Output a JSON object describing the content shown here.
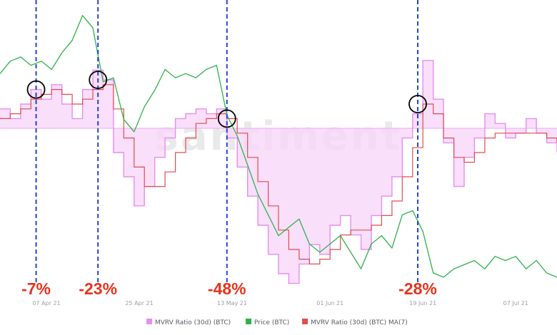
{
  "watermark": "santiment",
  "chart_data": {
    "type": "line",
    "x_start": "2021-03-29",
    "x_end": "2021-07-15",
    "x_ticks": [
      {
        "date": "2021-04-07",
        "label": "07 Apr 21"
      },
      {
        "date": "2021-04-25",
        "label": "25 Apr 21"
      },
      {
        "date": "2021-05-13",
        "label": "13 May 21"
      },
      {
        "date": "2021-06-01",
        "label": "01 Jun 21"
      },
      {
        "date": "2021-06-19",
        "label": "19 Jun 21"
      },
      {
        "date": "2021-07-07",
        "label": "07 Jul 21"
      }
    ],
    "mvrv_baseline": 0,
    "series": [
      {
        "name": "Price (BTC)",
        "color": "#2fb24a",
        "y_range": [
          30000,
          65000
        ],
        "x": [
          "2021-03-29",
          "2021-03-31",
          "2021-04-02",
          "2021-04-04",
          "2021-04-06",
          "2021-04-08",
          "2021-04-10",
          "2021-04-12",
          "2021-04-14",
          "2021-04-16",
          "2021-04-18",
          "2021-04-20",
          "2021-04-22",
          "2021-04-24",
          "2021-04-26",
          "2021-04-28",
          "2021-04-30",
          "2021-05-02",
          "2021-05-04",
          "2021-05-06",
          "2021-05-08",
          "2021-05-10",
          "2021-05-12",
          "2021-05-14",
          "2021-05-16",
          "2021-05-18",
          "2021-05-20",
          "2021-05-22",
          "2021-05-24",
          "2021-05-26",
          "2021-05-28",
          "2021-05-30",
          "2021-06-01",
          "2021-06-03",
          "2021-06-05",
          "2021-06-07",
          "2021-06-09",
          "2021-06-11",
          "2021-06-13",
          "2021-06-15",
          "2021-06-17",
          "2021-06-19",
          "2021-06-21",
          "2021-06-23",
          "2021-06-25",
          "2021-06-27",
          "2021-06-29",
          "2021-07-01",
          "2021-07-03",
          "2021-07-05",
          "2021-07-07",
          "2021-07-09",
          "2021-07-11",
          "2021-07-13",
          "2021-07-15"
        ],
        "values": [
          57000,
          58500,
          59000,
          58000,
          58500,
          57500,
          59500,
          61000,
          64000,
          62500,
          56000,
          56500,
          51500,
          50000,
          53000,
          55000,
          57500,
          56500,
          57000,
          56500,
          57500,
          58000,
          52000,
          49500,
          46000,
          42500,
          40000,
          37500,
          38500,
          39500,
          36500,
          35500,
          36500,
          37500,
          35500,
          33500,
          36500,
          37500,
          36000,
          40000,
          40500,
          38000,
          33000,
          32500,
          33500,
          34000,
          34500,
          33500,
          35000,
          34500,
          35000,
          33500,
          34500,
          33000,
          32500
        ]
      },
      {
        "name": "MVRV Ratio (30d) (BTC)",
        "color": "#e68ef0",
        "y_range": [
          -35,
          25
        ],
        "x": [
          "2021-03-29",
          "2021-03-31",
          "2021-04-02",
          "2021-04-04",
          "2021-04-06",
          "2021-04-08",
          "2021-04-10",
          "2021-04-12",
          "2021-04-14",
          "2021-04-16",
          "2021-04-18",
          "2021-04-20",
          "2021-04-22",
          "2021-04-24",
          "2021-04-26",
          "2021-04-28",
          "2021-04-30",
          "2021-05-02",
          "2021-05-04",
          "2021-05-06",
          "2021-05-08",
          "2021-05-10",
          "2021-05-12",
          "2021-05-14",
          "2021-05-16",
          "2021-05-18",
          "2021-05-20",
          "2021-05-22",
          "2021-05-24",
          "2021-05-26",
          "2021-05-28",
          "2021-05-30",
          "2021-06-01",
          "2021-06-03",
          "2021-06-05",
          "2021-06-07",
          "2021-06-09",
          "2021-06-11",
          "2021-06-13",
          "2021-06-15",
          "2021-06-17",
          "2021-06-19",
          "2021-06-21",
          "2021-06-23",
          "2021-06-25",
          "2021-06-27",
          "2021-06-29",
          "2021-07-01",
          "2021-07-03",
          "2021-07-05",
          "2021-07-07",
          "2021-07-09",
          "2021-07-11",
          "2021-07-13",
          "2021-07-15"
        ],
        "values": [
          4,
          2,
          5,
          8,
          6,
          9,
          5,
          2,
          8,
          12,
          10,
          -5,
          -10,
          -16,
          -12,
          -6,
          -2,
          2,
          3,
          4,
          3,
          4,
          -2,
          -8,
          -14,
          -20,
          -26,
          -30,
          -32,
          -28,
          -24,
          -26,
          -20,
          -18,
          -22,
          -25,
          -18,
          -14,
          -10,
          -2,
          3,
          14,
          6,
          -3,
          -12,
          -6,
          -2,
          3,
          1,
          -2,
          -1,
          2,
          -1,
          -3,
          -5
        ]
      },
      {
        "name": "MVRV Ratio (30d) (BTC) MA(7)",
        "color": "#e24d4d",
        "y_range": [
          -35,
          25
        ],
        "x": [
          "2021-03-29",
          "2021-03-31",
          "2021-04-02",
          "2021-04-04",
          "2021-04-06",
          "2021-04-08",
          "2021-04-10",
          "2021-04-12",
          "2021-04-14",
          "2021-04-16",
          "2021-04-18",
          "2021-04-20",
          "2021-04-22",
          "2021-04-24",
          "2021-04-26",
          "2021-04-28",
          "2021-04-30",
          "2021-05-02",
          "2021-05-04",
          "2021-05-06",
          "2021-05-08",
          "2021-05-10",
          "2021-05-12",
          "2021-05-14",
          "2021-05-16",
          "2021-05-18",
          "2021-05-20",
          "2021-05-22",
          "2021-05-24",
          "2021-05-26",
          "2021-05-28",
          "2021-05-30",
          "2021-06-01",
          "2021-06-03",
          "2021-06-05",
          "2021-06-07",
          "2021-06-09",
          "2021-06-11",
          "2021-06-13",
          "2021-06-15",
          "2021-06-17",
          "2021-06-19",
          "2021-06-21",
          "2021-06-23",
          "2021-06-25",
          "2021-06-27",
          "2021-06-29",
          "2021-07-01",
          "2021-07-03",
          "2021-07-05",
          "2021-07-07",
          "2021-07-09",
          "2021-07-11",
          "2021-07-13",
          "2021-07-15"
        ],
        "values": [
          2,
          3,
          4,
          6,
          7,
          8,
          7,
          5,
          6,
          8,
          9,
          4,
          -2,
          -8,
          -12,
          -12,
          -9,
          -5,
          -2,
          1,
          2,
          3,
          2,
          -1,
          -6,
          -11,
          -16,
          -21,
          -25,
          -27,
          -28,
          -27,
          -25,
          -22,
          -21,
          -21,
          -20,
          -18,
          -15,
          -10,
          -4,
          5,
          3,
          -2,
          -6,
          -7,
          -5,
          -2,
          -1,
          -1,
          -1,
          -1,
          -1,
          -2,
          -3
        ]
      }
    ],
    "annotations": [
      {
        "date": "2021-04-05",
        "value": 8,
        "label": "-7%"
      },
      {
        "date": "2021-04-17",
        "value": 10,
        "label": "-23%"
      },
      {
        "date": "2021-05-12",
        "value": 2,
        "label": "-48%"
      },
      {
        "date": "2021-06-18",
        "value": 5,
        "label": "-28%"
      }
    ],
    "legend_position": "bottom-center",
    "grid": false
  },
  "colors": {
    "mvrv": "#e68ef0",
    "mvrv_fill": "#f7d4f8",
    "price": "#2fb24a",
    "ma": "#e24d4d",
    "annotation_line": "#2444d6",
    "annotation_text": "#e8331b",
    "baseline": "#f0b5f2"
  }
}
